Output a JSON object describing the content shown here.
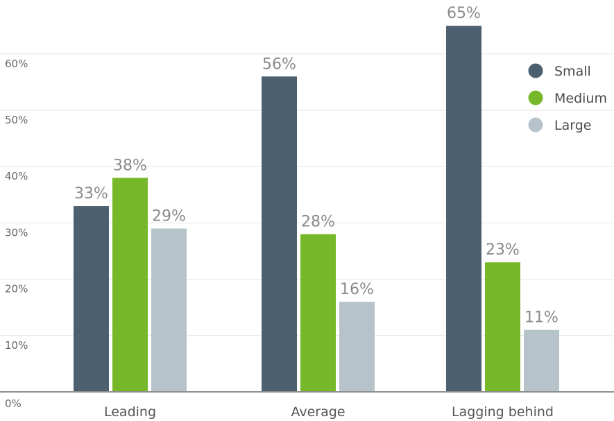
{
  "chart_data": {
    "type": "bar",
    "title": "",
    "xlabel": "",
    "ylabel": "",
    "categories": [
      "Leading",
      "Average",
      "Lagging behind"
    ],
    "series": [
      {
        "name": "Small",
        "values": [
          33,
          56,
          65
        ],
        "color": "#4c6070"
      },
      {
        "name": "Medium",
        "values": [
          38,
          28,
          23
        ],
        "color": "#77b82a"
      },
      {
        "name": "Large",
        "values": [
          29,
          16,
          11
        ],
        "color": "#b6c3cb"
      }
    ],
    "value_labels": [
      [
        "33%",
        "56%",
        "65%"
      ],
      [
        "38%",
        "28%",
        "23%"
      ],
      [
        "29%",
        "16%",
        "11%"
      ]
    ],
    "ylim": [
      0,
      60
    ],
    "yticks": [
      0,
      10,
      20,
      30,
      40,
      50,
      60
    ],
    "ytick_labels": [
      "0%",
      "10%",
      "20%",
      "30%",
      "40%",
      "50%",
      "60%"
    ],
    "grid": true,
    "legend_position": "top-right"
  }
}
